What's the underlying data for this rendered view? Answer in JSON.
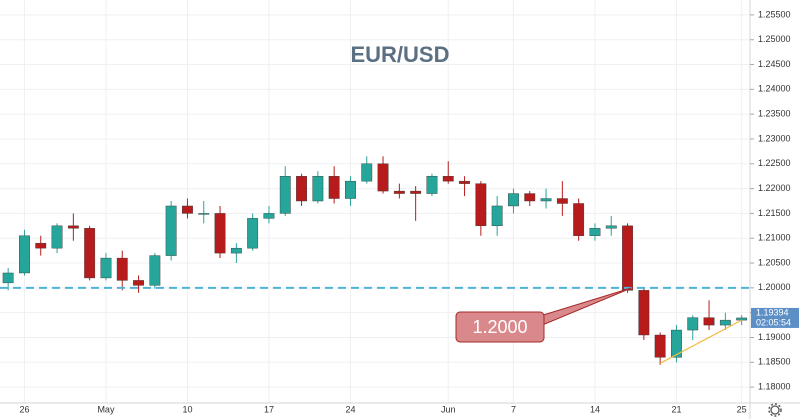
{
  "chart_data": {
    "type": "candlestick",
    "title": "EUR/USD",
    "categories": [
      null,
      "26",
      null,
      null,
      null,
      null,
      "May",
      null,
      null,
      null,
      null,
      "10",
      null,
      null,
      null,
      null,
      "17",
      null,
      null,
      null,
      null,
      "24",
      null,
      null,
      null,
      null,
      null,
      "Jun",
      null,
      null,
      null,
      "7",
      null,
      null,
      null,
      null,
      "14",
      null,
      null,
      null,
      null,
      "21",
      null,
      null,
      null,
      "25"
    ],
    "open": [
      1.201,
      1.203,
      1.209,
      1.208,
      1.2125,
      1.212,
      1.202,
      1.206,
      1.2015,
      1.2005,
      1.2065,
      1.2165,
      1.215,
      1.215,
      1.207,
      1.208,
      1.214,
      1.215,
      1.2225,
      1.2175,
      1.2225,
      1.218,
      1.2215,
      1.225,
      1.2195,
      1.2195,
      1.219,
      1.2225,
      1.2215,
      1.221,
      1.2125,
      1.2165,
      1.219,
      1.2175,
      1.218,
      1.217,
      1.2105,
      1.212,
      1.2125,
      1.1995,
      1.1905,
      1.186,
      1.1915,
      1.194,
      1.1925,
      1.1935
    ],
    "high": [
      1.204,
      1.2117,
      1.2105,
      1.213,
      1.215,
      1.2125,
      1.207,
      1.2075,
      1.2025,
      1.207,
      1.2175,
      1.218,
      1.2175,
      1.2165,
      1.209,
      1.215,
      1.2165,
      1.2245,
      1.223,
      1.2235,
      1.2245,
      1.2225,
      1.2265,
      1.2265,
      1.221,
      1.2205,
      1.223,
      1.2255,
      1.2225,
      1.2215,
      1.2185,
      1.22,
      1.2195,
      1.22,
      1.2215,
      1.218,
      1.213,
      1.2145,
      1.213,
      1.2,
      1.191,
      1.1925,
      1.1945,
      1.1975,
      1.195,
      1.1945
    ],
    "low": [
      1.1995,
      1.2025,
      1.2065,
      1.207,
      1.2095,
      1.2015,
      1.2015,
      1.1995,
      1.199,
      1.1998,
      1.2055,
      1.214,
      1.213,
      1.206,
      1.205,
      1.2075,
      1.213,
      1.2145,
      1.2165,
      1.217,
      1.217,
      1.2165,
      1.221,
      1.219,
      1.218,
      1.2135,
      1.2185,
      1.221,
      1.2185,
      1.2105,
      1.2105,
      1.215,
      1.2165,
      1.216,
      1.2145,
      1.2095,
      1.2095,
      1.2105,
      1.199,
      1.1895,
      1.1845,
      1.185,
      1.1895,
      1.1915,
      1.1915,
      1.1925
    ],
    "close": [
      1.203,
      1.2105,
      1.208,
      1.2125,
      1.212,
      1.202,
      1.206,
      1.2015,
      1.2005,
      1.2065,
      1.2165,
      1.215,
      1.215,
      1.207,
      1.208,
      1.214,
      1.215,
      1.2225,
      1.2175,
      1.2225,
      1.218,
      1.2215,
      1.225,
      1.2195,
      1.219,
      1.219,
      1.2225,
      1.2215,
      1.221,
      1.2125,
      1.2165,
      1.219,
      1.2175,
      1.218,
      1.217,
      1.2105,
      1.212,
      1.2125,
      1.1995,
      1.1905,
      1.186,
      1.1915,
      1.194,
      1.1925,
      1.1935,
      1.19394
    ],
    "up_color": "#26a69a",
    "down_color": "#b71c1c",
    "ylim": [
      1.1768,
      1.258
    ],
    "yticks": [
      {
        "value": 1.18,
        "label": "1.18000"
      },
      {
        "value": 1.185,
        "label": "1.18500"
      },
      {
        "value": 1.19,
        "label": "1.19000"
      },
      {
        "value": 1.195,
        "label": "1.19500"
      },
      {
        "value": 1.2,
        "label": "1.20000"
      },
      {
        "value": 1.205,
        "label": "1.20500"
      },
      {
        "value": 1.21,
        "label": "1.21000"
      },
      {
        "value": 1.215,
        "label": "1.21500"
      },
      {
        "value": 1.22,
        "label": "1.22000"
      },
      {
        "value": 1.225,
        "label": "1.22500"
      },
      {
        "value": 1.23,
        "label": "1.23000"
      },
      {
        "value": 1.235,
        "label": "1.23500"
      },
      {
        "value": 1.24,
        "label": "1.24000"
      },
      {
        "value": 1.245,
        "label": "1.24500"
      },
      {
        "value": 1.25,
        "label": "1.25000"
      },
      {
        "value": 1.255,
        "label": "1.25500"
      }
    ],
    "grid": true,
    "horizontal_line": {
      "value": 1.2,
      "color": "#4fb3d9"
    },
    "annotation": {
      "label": "1.2000"
    },
    "trendline_values": [
      1.1848,
      1.1935
    ],
    "last_price": 1.19394,
    "countdown": "02:05:54"
  }
}
